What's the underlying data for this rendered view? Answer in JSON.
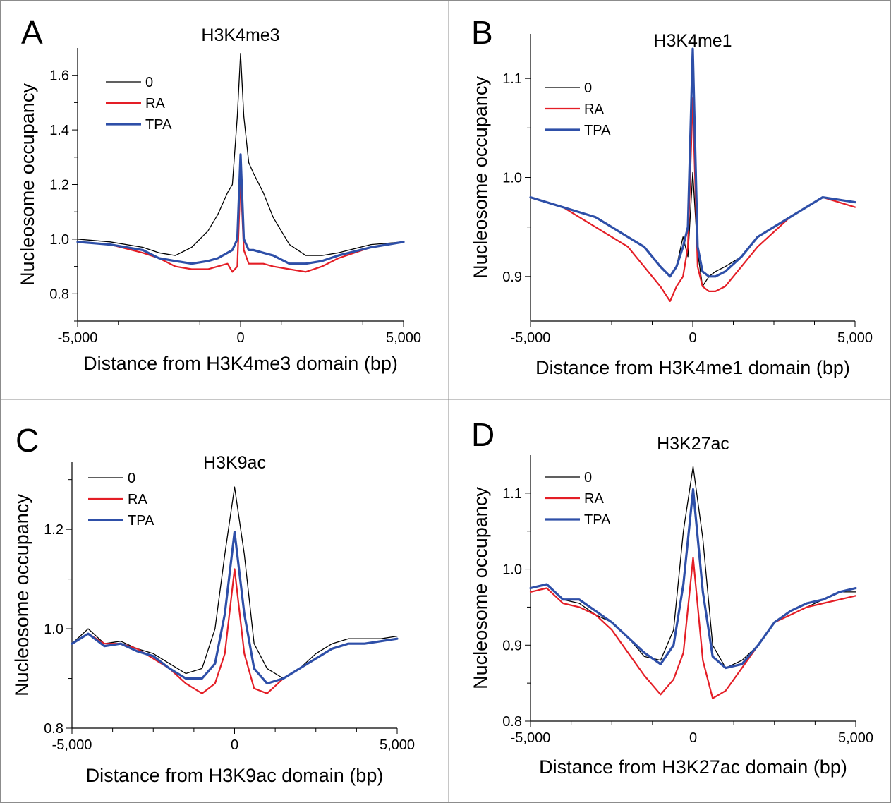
{
  "colors": {
    "series_0": "#000000",
    "series_RA": "#e41e26",
    "series_TPA": "#2e4fa8",
    "panel_border": "#8c8c8c"
  },
  "panels": [
    {
      "letter": "A"
    },
    {
      "letter": "B"
    },
    {
      "letter": "C"
    },
    {
      "letter": "D"
    }
  ],
  "chart_data": [
    {
      "type": "line",
      "panel": "A",
      "title": "H3K4me3",
      "xlabel": "Distance from H3K4me3 domain (bp)",
      "ylabel": "Nucleosome occupancy",
      "xlim": [
        -5000,
        5000
      ],
      "ylim": [
        0.7,
        1.7
      ],
      "xticks": [
        -5000,
        0,
        5000
      ],
      "xtick_labels": [
        "-5,000",
        "0",
        "5,000"
      ],
      "yticks": [
        0.8,
        1.0,
        1.2,
        1.4,
        1.6
      ],
      "ytick_labels": [
        "0.8",
        "1.0",
        "1.2",
        "1.4",
        "1.6"
      ],
      "legend": "top-left",
      "grid": false,
      "x": [
        -5000,
        -4000,
        -3000,
        -2500,
        -2000,
        -1500,
        -1000,
        -700,
        -400,
        -250,
        -100,
        0,
        100,
        250,
        400,
        700,
        1000,
        1500,
        2000,
        2500,
        3000,
        4000,
        5000
      ],
      "series": [
        {
          "name": "0",
          "values": [
            1.0,
            0.99,
            0.97,
            0.95,
            0.94,
            0.97,
            1.03,
            1.09,
            1.17,
            1.2,
            1.45,
            1.68,
            1.45,
            1.28,
            1.24,
            1.17,
            1.08,
            0.98,
            0.94,
            0.94,
            0.95,
            0.98,
            0.99
          ]
        },
        {
          "name": "RA",
          "values": [
            0.99,
            0.98,
            0.95,
            0.93,
            0.9,
            0.89,
            0.89,
            0.9,
            0.91,
            0.88,
            0.9,
            1.23,
            0.96,
            0.91,
            0.91,
            0.91,
            0.9,
            0.89,
            0.88,
            0.9,
            0.93,
            0.97,
            0.99
          ]
        },
        {
          "name": "TPA",
          "values": [
            0.99,
            0.98,
            0.96,
            0.93,
            0.92,
            0.91,
            0.92,
            0.93,
            0.95,
            0.96,
            1.0,
            1.31,
            1.0,
            0.96,
            0.96,
            0.95,
            0.94,
            0.91,
            0.91,
            0.92,
            0.94,
            0.97,
            0.99
          ]
        }
      ]
    },
    {
      "type": "line",
      "panel": "B",
      "title": "H3K4me1",
      "xlabel": "Distance from H3K4me1 domain (bp)",
      "ylabel": "Nucleosome occupancy",
      "xlim": [
        -5000,
        5000
      ],
      "ylim": [
        0.855,
        1.145
      ],
      "xticks": [
        -5000,
        0,
        5000
      ],
      "xtick_labels": [
        "-5,000",
        "0",
        "5,000"
      ],
      "yticks": [
        0.9,
        1.0,
        1.1
      ],
      "ytick_labels": [
        "0.9",
        "1.0",
        "1.1"
      ],
      "legend": "top-left",
      "grid": false,
      "x": [
        -5000,
        -4000,
        -3000,
        -2000,
        -1500,
        -1000,
        -700,
        -500,
        -300,
        -150,
        0,
        150,
        300,
        500,
        700,
        1000,
        1500,
        2000,
        3000,
        4000,
        5000
      ],
      "series": [
        {
          "name": "0",
          "values": [
            0.98,
            0.97,
            0.96,
            0.94,
            0.93,
            0.91,
            0.9,
            0.91,
            0.94,
            0.92,
            1.005,
            0.925,
            0.89,
            0.9,
            0.905,
            0.91,
            0.92,
            0.94,
            0.96,
            0.98,
            0.97
          ]
        },
        {
          "name": "RA",
          "values": [
            0.98,
            0.97,
            0.95,
            0.93,
            0.91,
            0.89,
            0.875,
            0.89,
            0.9,
            0.93,
            1.08,
            0.91,
            0.89,
            0.885,
            0.885,
            0.89,
            0.91,
            0.93,
            0.96,
            0.98,
            0.97
          ]
        },
        {
          "name": "TPA",
          "values": [
            0.98,
            0.97,
            0.96,
            0.94,
            0.93,
            0.91,
            0.9,
            0.91,
            0.93,
            0.95,
            1.13,
            0.93,
            0.905,
            0.9,
            0.9,
            0.905,
            0.92,
            0.94,
            0.96,
            0.98,
            0.975
          ]
        }
      ]
    },
    {
      "type": "line",
      "panel": "C",
      "title": "H3K9ac",
      "xlabel": "Distance from H3K9ac domain (bp)",
      "ylabel": "Nucleosome occupancy",
      "xlim": [
        -5000,
        5000
      ],
      "ylim": [
        0.8,
        1.335
      ],
      "xticks": [
        -5000,
        0,
        5000
      ],
      "xtick_labels": [
        "-5,000",
        "0",
        "5,000"
      ],
      "yticks": [
        0.8,
        1.0,
        1.2
      ],
      "ytick_labels": [
        "0.8",
        "1.0",
        "1.2"
      ],
      "legend": "top-left",
      "grid": false,
      "x": [
        -5000,
        -4500,
        -4000,
        -3500,
        -3000,
        -2500,
        -2000,
        -1500,
        -1000,
        -600,
        -300,
        0,
        300,
        600,
        1000,
        1500,
        2000,
        2500,
        3000,
        3500,
        4000,
        4500,
        5000
      ],
      "series": [
        {
          "name": "0",
          "values": [
            0.97,
            1.0,
            0.97,
            0.975,
            0.96,
            0.95,
            0.93,
            0.91,
            0.92,
            1.0,
            1.15,
            1.285,
            1.15,
            0.97,
            0.92,
            0.9,
            0.92,
            0.95,
            0.97,
            0.98,
            0.98,
            0.98,
            0.985
          ]
        },
        {
          "name": "RA",
          "values": [
            0.97,
            0.99,
            0.97,
            0.97,
            0.96,
            0.94,
            0.92,
            0.89,
            0.87,
            0.89,
            0.95,
            1.12,
            0.95,
            0.88,
            0.87,
            0.9,
            0.92,
            0.94,
            0.96,
            0.97,
            0.97,
            0.975,
            0.98
          ]
        },
        {
          "name": "TPA",
          "values": [
            0.97,
            0.99,
            0.965,
            0.97,
            0.955,
            0.945,
            0.92,
            0.9,
            0.9,
            0.93,
            1.03,
            1.195,
            1.03,
            0.92,
            0.89,
            0.9,
            0.92,
            0.94,
            0.96,
            0.97,
            0.97,
            0.975,
            0.98
          ]
        }
      ]
    },
    {
      "type": "line",
      "panel": "D",
      "title": "H3K27ac",
      "xlabel": "Distance from H3K27ac domain (bp)",
      "ylabel": "Nucleosome occupancy",
      "xlim": [
        -5000,
        5000
      ],
      "ylim": [
        0.8,
        1.15
      ],
      "xticks": [
        -5000,
        0,
        5000
      ],
      "xtick_labels": [
        "-5,000",
        "0",
        "5,000"
      ],
      "yticks": [
        0.8,
        0.9,
        1.0,
        1.1
      ],
      "ytick_labels": [
        "0.8",
        "0.9",
        "1.0",
        "1.1"
      ],
      "legend": "top-left",
      "grid": false,
      "x": [
        -5000,
        -4500,
        -4000,
        -3500,
        -3000,
        -2500,
        -2000,
        -1500,
        -1000,
        -600,
        -300,
        0,
        300,
        600,
        1000,
        1500,
        2000,
        2500,
        3000,
        3500,
        4000,
        4500,
        5000
      ],
      "series": [
        {
          "name": "0",
          "values": [
            0.975,
            0.98,
            0.96,
            0.955,
            0.94,
            0.93,
            0.91,
            0.885,
            0.88,
            0.92,
            1.05,
            1.135,
            1.04,
            0.9,
            0.87,
            0.88,
            0.9,
            0.93,
            0.94,
            0.95,
            0.96,
            0.97,
            0.97
          ]
        },
        {
          "name": "RA",
          "values": [
            0.97,
            0.975,
            0.955,
            0.95,
            0.94,
            0.92,
            0.89,
            0.86,
            0.835,
            0.855,
            0.89,
            1.015,
            0.88,
            0.83,
            0.84,
            0.87,
            0.9,
            0.93,
            0.94,
            0.95,
            0.955,
            0.96,
            0.965
          ]
        },
        {
          "name": "TPA",
          "values": [
            0.975,
            0.98,
            0.96,
            0.96,
            0.945,
            0.93,
            0.91,
            0.89,
            0.875,
            0.9,
            0.98,
            1.105,
            0.97,
            0.885,
            0.87,
            0.875,
            0.9,
            0.93,
            0.945,
            0.955,
            0.96,
            0.97,
            0.975
          ]
        }
      ]
    }
  ]
}
